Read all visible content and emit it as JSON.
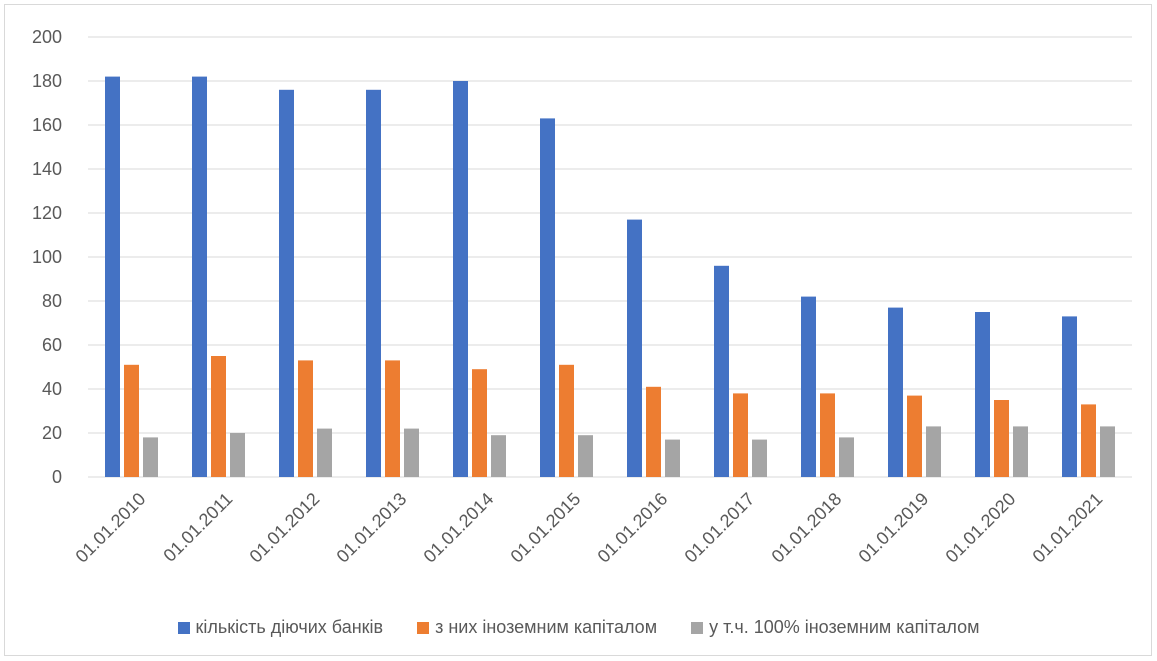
{
  "chart_data": {
    "type": "bar",
    "title": "",
    "xlabel": "",
    "ylabel": "",
    "ylim": [
      0,
      200
    ],
    "yticks": [
      0,
      20,
      40,
      60,
      80,
      100,
      120,
      140,
      160,
      180,
      200
    ],
    "grid": true,
    "legend_position": "bottom",
    "categories": [
      "01.01.2010",
      "01.01.2011",
      "01.01.2012",
      "01.01.2013",
      "01.01.2014",
      "01.01.2015",
      "01.01.2016",
      "01.01.2017",
      "01.01.2018",
      "01.01.2019",
      "01.01.2020",
      "01.01.2021"
    ],
    "series": [
      {
        "name": "кількість діючих банків",
        "color": "#4472C4",
        "values": [
          182,
          182,
          176,
          176,
          180,
          163,
          117,
          96,
          82,
          77,
          75,
          73
        ]
      },
      {
        "name": "з них іноземним капіталом",
        "color": "#ED7D31",
        "values": [
          51,
          55,
          53,
          53,
          49,
          51,
          41,
          38,
          38,
          37,
          35,
          33
        ]
      },
      {
        "name": "у т.ч. 100% іноземним капіталом",
        "color": "#A5A5A5",
        "values": [
          18,
          20,
          22,
          22,
          19,
          19,
          17,
          17,
          18,
          23,
          23,
          23
        ]
      }
    ]
  }
}
